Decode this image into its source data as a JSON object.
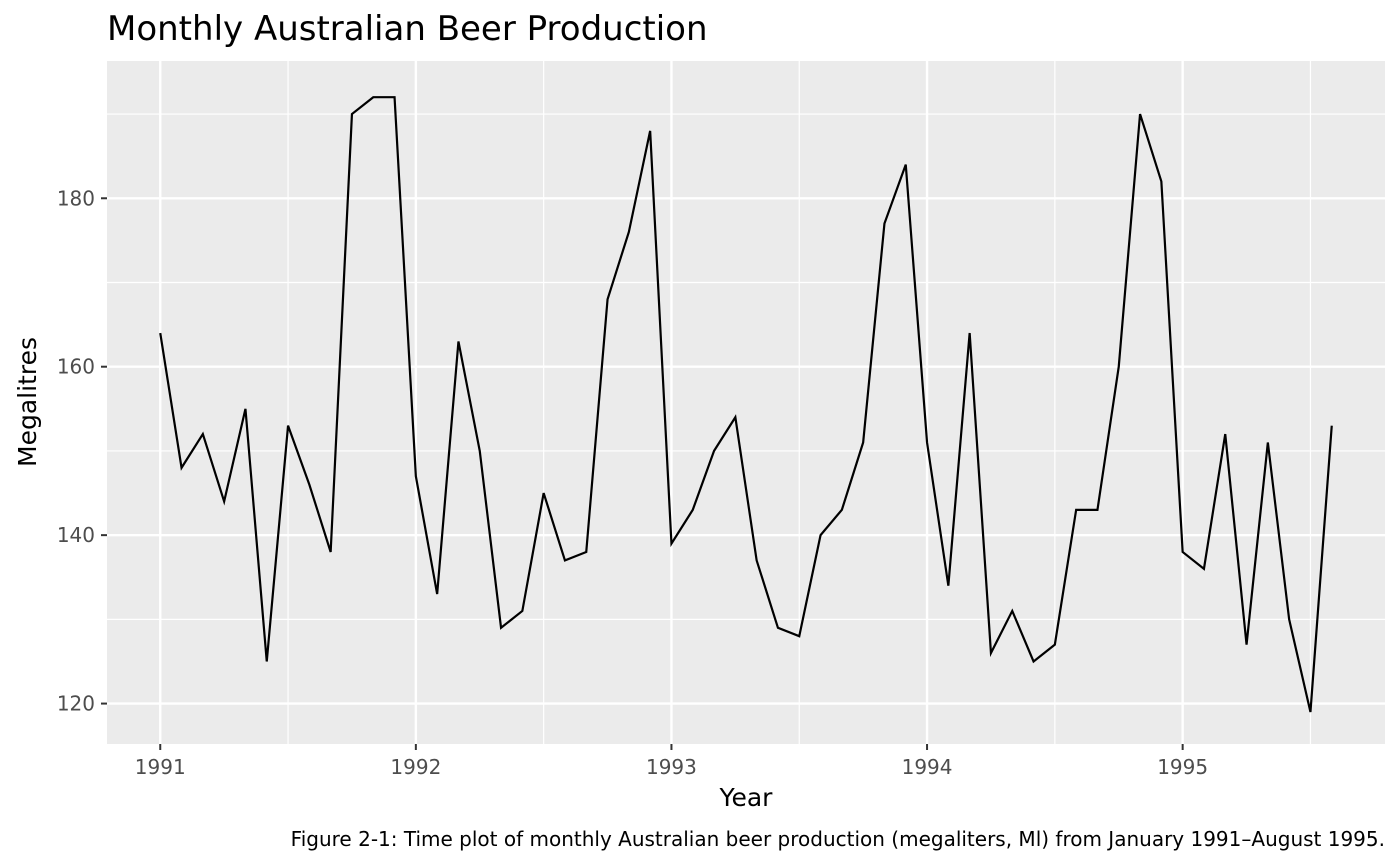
{
  "chart_data": {
    "type": "line",
    "title": "Monthly Australian Beer Production",
    "xlabel": "Year",
    "ylabel": "Megalitres",
    "caption": "Figure 2-1: Time plot of monthly Australian beer production (megaliters, Ml) from January 1991–August 1995.",
    "x_start": "1991-01",
    "x_end": "1995-08",
    "x_ticks": [
      "1991",
      "1992",
      "1993",
      "1994",
      "1995"
    ],
    "y_ticks": [
      120,
      140,
      160,
      180
    ],
    "xlim": [
      "1990-10",
      "1995-10"
    ],
    "ylim": [
      115.2,
      196.3
    ],
    "grid": true,
    "background": "#ebebeb",
    "line_color": "#000000",
    "series": [
      {
        "values": [
          164,
          148,
          152,
          144,
          155,
          125,
          153,
          146,
          138,
          190,
          192,
          192,
          147,
          133,
          163,
          150,
          129,
          131,
          145,
          137,
          138,
          168,
          176,
          188,
          139,
          143,
          150,
          154,
          137,
          129,
          128,
          140,
          143,
          151,
          177,
          184,
          151,
          134,
          164,
          126,
          131,
          125,
          127,
          143,
          143,
          160,
          190,
          182,
          138,
          136,
          152,
          127,
          151,
          130,
          119,
          153
        ]
      }
    ]
  }
}
